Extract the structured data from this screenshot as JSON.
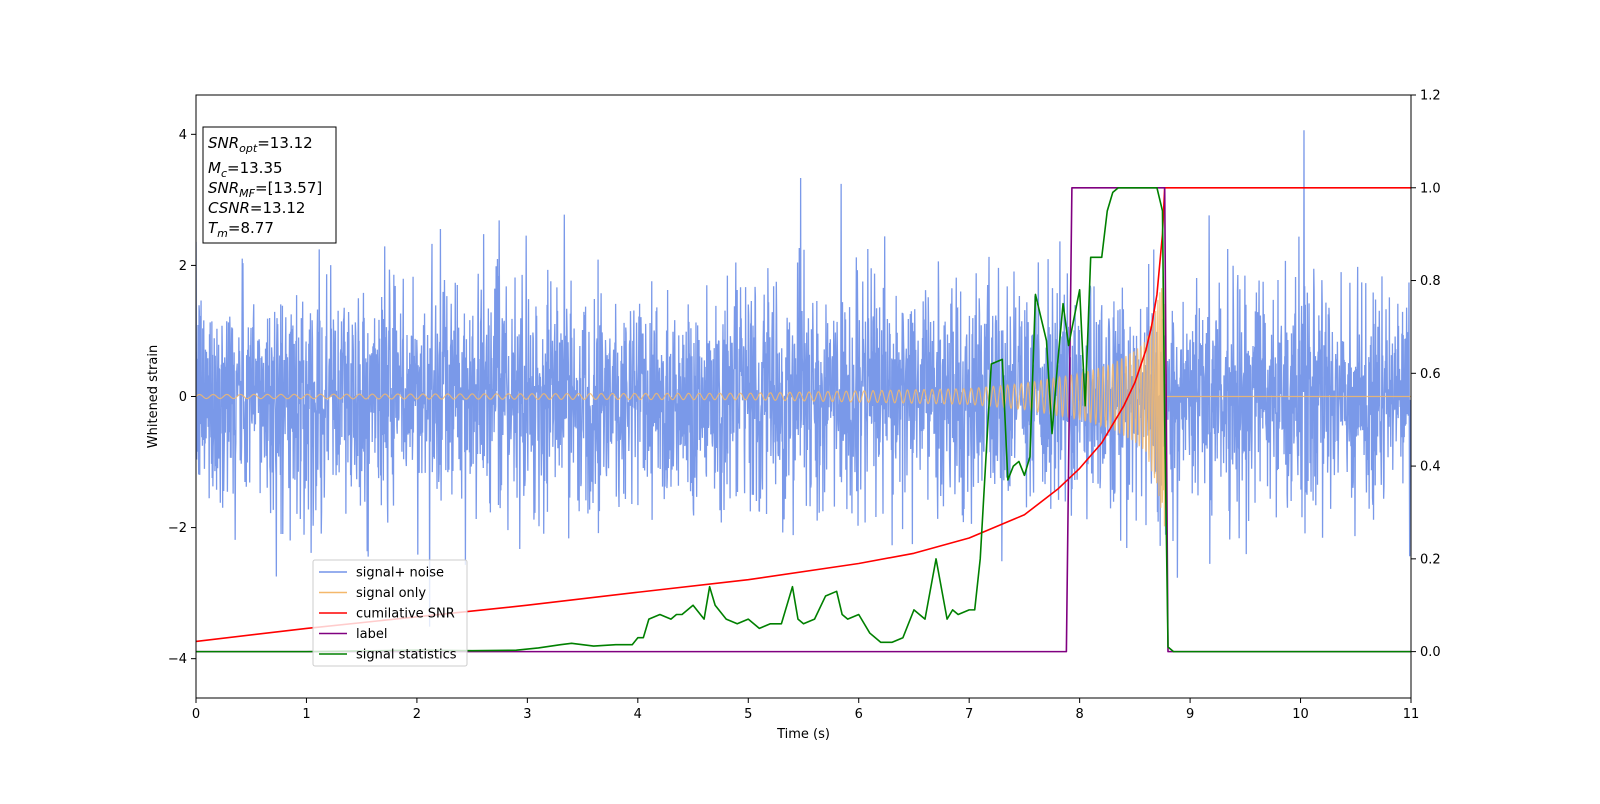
{
  "chart_data": {
    "type": "line",
    "xlabel": "Time (s)",
    "ylabel": "Whitened strain",
    "xlim": [
      0,
      11
    ],
    "ylim_left": [
      -4.6,
      4.6
    ],
    "ylim_right": [
      -0.1,
      1.2
    ],
    "x_ticks": [
      "0",
      "1",
      "2",
      "3",
      "4",
      "5",
      "6",
      "7",
      "8",
      "9",
      "10",
      "11"
    ],
    "y_left_ticks": [
      "4",
      "2",
      "0",
      "−2",
      "−4"
    ],
    "y_right_ticks": [
      "1.2",
      "1.0",
      "0.8",
      "0.6",
      "0.4",
      "0.2",
      "0.0"
    ],
    "grid": false,
    "legend_position": "lower-left",
    "info_box": {
      "position": "upper-left",
      "lines": [
        {
          "base": "SNR",
          "sub": "opt",
          "rest": "=13.12"
        },
        {
          "base": "M",
          "sub": "c",
          "rest": "=13.35"
        },
        {
          "base": "SNR",
          "sub": "MF",
          "rest": "=[13.57]"
        },
        {
          "base": "CSNR",
          "sub": "",
          "rest": "=13.12"
        },
        {
          "base": "T",
          "sub": "m",
          "rest": "=8.77"
        }
      ]
    },
    "series": [
      {
        "name": "signal+ noise",
        "axis": "left",
        "color": "#7393e8",
        "kind": "noise",
        "std": 0.85,
        "x_range": [
          0,
          11
        ]
      },
      {
        "name": "signal only",
        "axis": "left",
        "color": "#f4b86b",
        "kind": "chirp",
        "coalescence_time": 8.77,
        "envelope": [
          [
            0,
            0.03
          ],
          [
            5,
            0.05
          ],
          [
            7,
            0.12
          ],
          [
            7.5,
            0.2
          ],
          [
            8,
            0.35
          ],
          [
            8.3,
            0.5
          ],
          [
            8.5,
            0.7
          ],
          [
            8.6,
            0.85
          ],
          [
            8.7,
            1.4
          ],
          [
            8.77,
            2.0
          ]
        ]
      },
      {
        "name": "cumilative SNR",
        "axis": "right",
        "color": "#ff0000",
        "x": [
          0,
          1,
          2,
          3,
          4,
          5,
          6,
          6.5,
          7,
          7.5,
          7.8,
          8.0,
          8.2,
          8.4,
          8.5,
          8.6,
          8.65,
          8.7,
          8.75,
          8.77,
          9,
          10,
          11
        ],
        "y": [
          0.022,
          0.05,
          0.075,
          0.1,
          0.128,
          0.155,
          0.19,
          0.212,
          0.245,
          0.295,
          0.35,
          0.395,
          0.45,
          0.53,
          0.58,
          0.65,
          0.7,
          0.77,
          0.9,
          1.0,
          1.0,
          1.0,
          1.0
        ]
      },
      {
        "name": "label",
        "axis": "right",
        "color": "#800080",
        "x": [
          0,
          7.88,
          7.93,
          8.77,
          8.8,
          11
        ],
        "y": [
          0.0,
          0.0,
          1.0,
          1.0,
          0.0,
          0.0
        ]
      },
      {
        "name": "signal statistics",
        "axis": "right",
        "color": "#008000",
        "x": [
          0,
          1,
          2,
          2.5,
          2.9,
          3.1,
          3.3,
          3.4,
          3.6,
          3.8,
          3.95,
          4.0,
          4.05,
          4.1,
          4.2,
          4.3,
          4.35,
          4.4,
          4.5,
          4.6,
          4.65,
          4.7,
          4.8,
          4.9,
          5.0,
          5.1,
          5.2,
          5.3,
          5.4,
          5.45,
          5.5,
          5.6,
          5.7,
          5.8,
          5.85,
          5.9,
          6.0,
          6.1,
          6.2,
          6.3,
          6.4,
          6.5,
          6.6,
          6.7,
          6.8,
          6.85,
          6.9,
          7.0,
          7.05,
          7.1,
          7.2,
          7.3,
          7.35,
          7.4,
          7.45,
          7.5,
          7.55,
          7.6,
          7.7,
          7.75,
          7.8,
          7.85,
          7.9,
          8.0,
          8.05,
          8.1,
          8.2,
          8.25,
          8.3,
          8.35,
          8.4,
          8.45,
          8.5,
          8.6,
          8.7,
          8.75,
          8.77,
          8.8,
          8.85,
          9,
          10,
          11
        ],
        "y": [
          0.0,
          0.0,
          0.003,
          0.002,
          0.003,
          0.008,
          0.015,
          0.018,
          0.012,
          0.015,
          0.015,
          0.03,
          0.03,
          0.07,
          0.08,
          0.07,
          0.08,
          0.08,
          0.1,
          0.07,
          0.14,
          0.1,
          0.07,
          0.06,
          0.07,
          0.05,
          0.06,
          0.06,
          0.14,
          0.07,
          0.06,
          0.07,
          0.12,
          0.13,
          0.08,
          0.07,
          0.08,
          0.04,
          0.02,
          0.02,
          0.03,
          0.09,
          0.07,
          0.2,
          0.07,
          0.09,
          0.08,
          0.09,
          0.09,
          0.2,
          0.62,
          0.63,
          0.37,
          0.4,
          0.41,
          0.38,
          0.42,
          0.77,
          0.67,
          0.47,
          0.62,
          0.75,
          0.66,
          0.78,
          0.53,
          0.85,
          0.85,
          0.95,
          0.99,
          1.0,
          1.0,
          1.0,
          1.0,
          1.0,
          1.0,
          0.95,
          0.5,
          0.01,
          0.0,
          0.0,
          0.0,
          0.0
        ]
      }
    ]
  }
}
